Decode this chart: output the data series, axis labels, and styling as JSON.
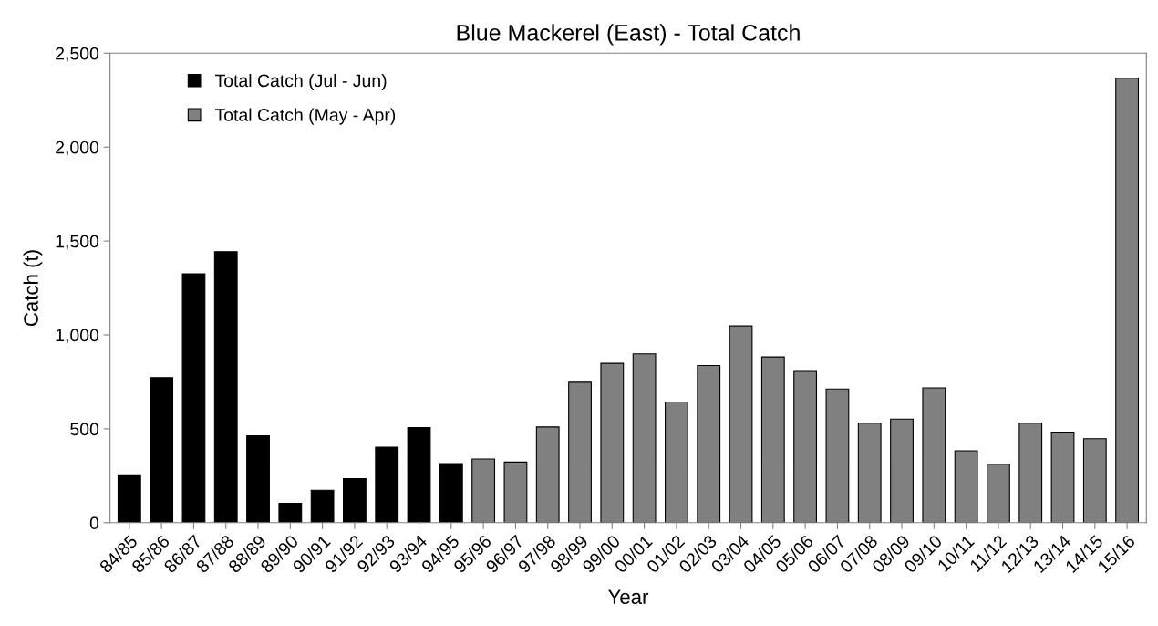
{
  "chart_data": {
    "type": "bar",
    "title": "Blue Mackerel (East) - Total Catch",
    "xlabel": "Year",
    "ylabel": "Catch (t)",
    "categories": [
      "84/85",
      "85/86",
      "86/87",
      "87/88",
      "88/89",
      "89/90",
      "90/91",
      "91/92",
      "92/93",
      "93/94",
      "94/95",
      "95/96",
      "96/97",
      "97/98",
      "98/99",
      "99/00",
      "00/01",
      "01/02",
      "02/03",
      "03/04",
      "04/05",
      "05/06",
      "06/07",
      "07/08",
      "08/09",
      "09/10",
      "10/11",
      "11/12",
      "12/13",
      "13/14",
      "14/15",
      "15/16"
    ],
    "series": [
      {
        "name": "Total Catch (Jul - Jun)",
        "color": "#000000",
        "values": [
          255,
          773,
          1325,
          1443,
          463,
          103,
          173,
          235,
          402,
          507,
          315,
          null,
          null,
          null,
          null,
          null,
          null,
          null,
          null,
          null,
          null,
          null,
          null,
          null,
          null,
          null,
          null,
          null,
          null,
          null,
          null,
          null
        ]
      },
      {
        "name": "Total Catch (May - Apr)",
        "color": "#808080",
        "values": [
          null,
          null,
          null,
          null,
          null,
          null,
          null,
          null,
          null,
          null,
          null,
          339,
          323,
          510,
          748,
          849,
          899,
          643,
          837,
          1048,
          883,
          806,
          712,
          530,
          552,
          718,
          383,
          312,
          530,
          482,
          447,
          2367
        ]
      }
    ],
    "ylim": [
      0,
      2500
    ],
    "yticks": [
      0,
      500,
      {
        "value": 1000,
        "label": "1,000"
      },
      {
        "value": 1500,
        "label": "1,500"
      },
      {
        "value": 2000,
        "label": "2,000"
      },
      {
        "value": 2500,
        "label": "2,500"
      }
    ],
    "grid": false,
    "legend": "top left"
  }
}
